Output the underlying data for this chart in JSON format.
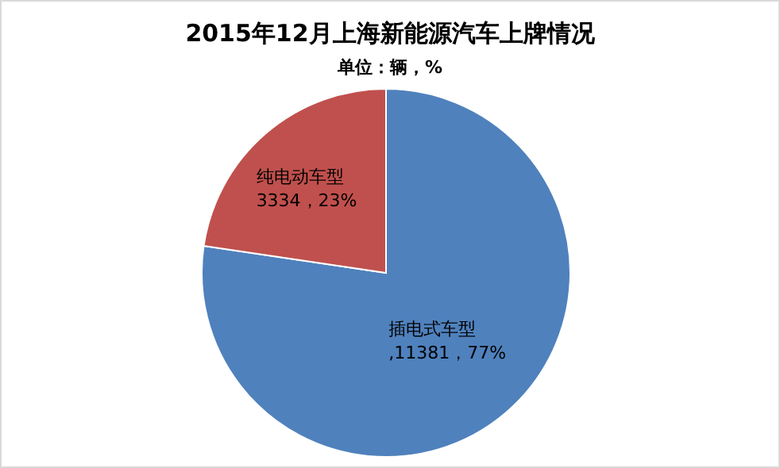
{
  "chart_data": {
    "type": "pie",
    "title": "2015年12月上海新能源汽车上牌情况",
    "subtitle": "单位：辆，%",
    "categories": [
      "插电式车型",
      "纯电动车型"
    ],
    "values": [
      11381,
      3334
    ],
    "colors": [
      "#4f81bd",
      "#c0504d"
    ],
    "value_labels": [
      ",11381，77%",
      "3334，23%"
    ]
  }
}
